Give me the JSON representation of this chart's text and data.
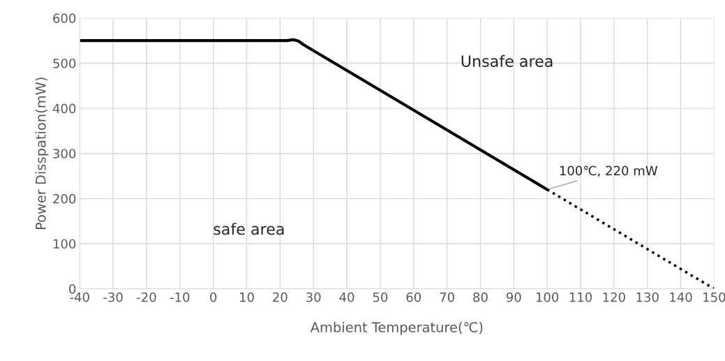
{
  "chart_data": {
    "type": "line",
    "xlabel": "Ambient Temperature(℃)",
    "ylabel": "Power Disspation(mW)",
    "xlim": [
      -40,
      150
    ],
    "xticks": [
      -40,
      -30,
      -20,
      -10,
      0,
      10,
      20,
      30,
      40,
      50,
      60,
      70,
      80,
      90,
      100,
      110,
      120,
      130,
      140,
      150
    ],
    "ylim": [
      0,
      600
    ],
    "yticks": [
      0,
      100,
      200,
      300,
      400,
      500,
      600
    ],
    "grid": true,
    "legend": false,
    "series": [
      {
        "color": "#000000",
        "line_style": "solid",
        "x": [
          -40,
          22,
          24,
          25.5,
          27,
          100
        ],
        "values": [
          550,
          550,
          552,
          549,
          541,
          220
        ]
      },
      {
        "color": "#000000",
        "line_style": "dotted",
        "x": [
          100,
          150
        ],
        "values": [
          220,
          0
        ]
      }
    ],
    "annotations": [
      "Unsafe area",
      "safe area",
      {
        "text": "100℃, 220 mW",
        "x": 100,
        "y": 220
      }
    ]
  }
}
